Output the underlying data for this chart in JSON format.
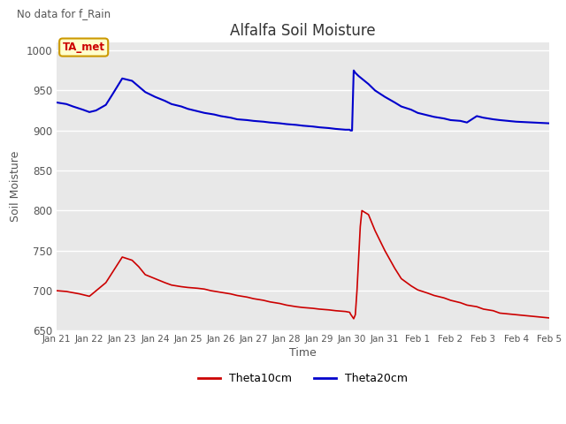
{
  "title": "Alfalfa Soil Moisture",
  "xlabel": "Time",
  "ylabel": "Soil Moisture",
  "top_text": "No data for f_Rain",
  "annotation_text": "TA_met",
  "ylim": [
    650,
    1010
  ],
  "yticks": [
    650,
    700,
    750,
    800,
    850,
    900,
    950,
    1000
  ],
  "x_labels": [
    "Jan 21",
    "Jan 22",
    "Jan 23",
    "Jan 24",
    "Jan 25",
    "Jan 26",
    "Jan 27",
    "Jan 28",
    "Jan 29",
    "Jan 30",
    "Jan 31",
    "Feb 1",
    "Feb 2",
    "Feb 3",
    "Feb 4",
    "Feb 5"
  ],
  "bg_color": "#e8e8e8",
  "line_color_red": "#cc0000",
  "line_color_blue": "#0000cc",
  "legend_label_red": "Theta10cm",
  "legend_label_blue": "Theta20cm",
  "t10_x": [
    0,
    0.3,
    0.7,
    1.0,
    1.5,
    2.0,
    2.3,
    2.5,
    2.7,
    3.0,
    3.3,
    3.5,
    3.8,
    4.0,
    4.3,
    4.5,
    4.7,
    5.0,
    5.3,
    5.5,
    5.8,
    6.0,
    6.3,
    6.5,
    6.8,
    7.0,
    7.3,
    7.5,
    7.8,
    8.0,
    8.3,
    8.5,
    8.8,
    8.93,
    8.95,
    9.0,
    9.05,
    9.1,
    9.15,
    9.2,
    9.25,
    9.3,
    9.5,
    9.7,
    10.0,
    10.3,
    10.5,
    10.8,
    11.0,
    11.3,
    11.5,
    11.8,
    12.0,
    12.3,
    12.5,
    12.8,
    13.0,
    13.3,
    13.5,
    14.0,
    14.5,
    15.0
  ],
  "t10_y": [
    700,
    699,
    696,
    693,
    710,
    742,
    738,
    730,
    720,
    715,
    710,
    707,
    705,
    704,
    703,
    702,
    700,
    698,
    696,
    694,
    692,
    690,
    688,
    686,
    684,
    682,
    680,
    679,
    678,
    677,
    676,
    675,
    674,
    673,
    671,
    668,
    665,
    670,
    700,
    740,
    780,
    800,
    795,
    775,
    750,
    728,
    715,
    706,
    701,
    697,
    694,
    691,
    688,
    685,
    682,
    680,
    677,
    675,
    672,
    670,
    668,
    666
  ],
  "t20_x": [
    0,
    0.3,
    0.5,
    0.8,
    1.0,
    1.2,
    1.5,
    1.7,
    2.0,
    2.3,
    2.5,
    2.7,
    3.0,
    3.3,
    3.5,
    3.8,
    4.0,
    4.3,
    4.5,
    4.8,
    5.0,
    5.3,
    5.5,
    5.8,
    6.0,
    6.3,
    6.5,
    6.8,
    7.0,
    7.3,
    7.5,
    7.8,
    8.0,
    8.3,
    8.5,
    8.8,
    8.93,
    8.95,
    9.0,
    9.05,
    9.1,
    9.2,
    9.5,
    9.7,
    10.0,
    10.3,
    10.5,
    10.8,
    11.0,
    11.3,
    11.5,
    11.8,
    12.0,
    12.3,
    12.5,
    12.8,
    13.0,
    13.3,
    13.5,
    14.0,
    14.5,
    15.0
  ],
  "t20_y": [
    935,
    933,
    930,
    926,
    923,
    925,
    932,
    945,
    965,
    962,
    955,
    948,
    942,
    937,
    933,
    930,
    927,
    924,
    922,
    920,
    918,
    916,
    914,
    913,
    912,
    911,
    910,
    909,
    908,
    907,
    906,
    905,
    904,
    903,
    902,
    901,
    901,
    900,
    900,
    975,
    972,
    968,
    958,
    950,
    942,
    935,
    930,
    926,
    922,
    919,
    917,
    915,
    913,
    912,
    910,
    918,
    916,
    914,
    913,
    911,
    910,
    909
  ]
}
